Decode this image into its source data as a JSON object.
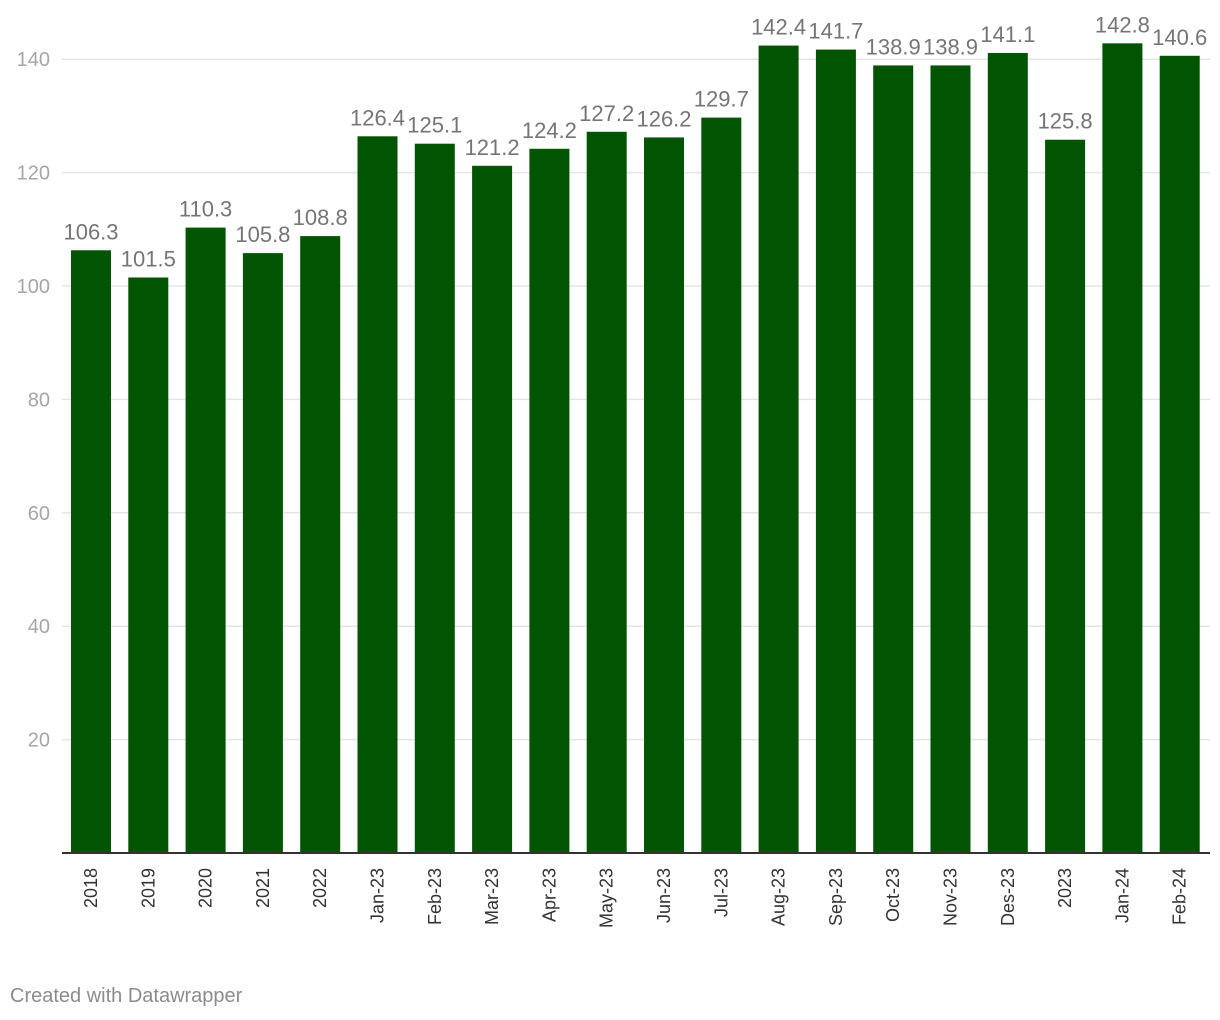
{
  "chart_data": {
    "type": "bar",
    "categories": [
      "2018",
      "2019",
      "2020",
      "2021",
      "2022",
      "Jan-23",
      "Feb-23",
      "Mar-23",
      "Apr-23",
      "May-23",
      "Jun-23",
      "Jul-23",
      "Aug-23",
      "Sep-23",
      "Oct-23",
      "Nov-23",
      "Des-23",
      "2023",
      "Jan-24",
      "Feb-24"
    ],
    "values": [
      106.3,
      101.5,
      110.3,
      105.8,
      108.8,
      126.4,
      125.1,
      121.2,
      124.2,
      127.2,
      126.2,
      129.7,
      142.4,
      141.7,
      138.9,
      138.9,
      141.1,
      125.8,
      142.8,
      140.6
    ],
    "value_labels": [
      "106.3",
      "101.5",
      "110.3",
      "105.8",
      "108.8",
      "126.4",
      "125.1",
      "121.2",
      "124.2",
      "127.2",
      "126.2",
      "129.7",
      "142.4",
      "141.7",
      "138.9",
      "138.9",
      "141.1",
      "125.8",
      "142.8",
      "140.6"
    ],
    "ylim": [
      0,
      140
    ],
    "yticks": [
      20,
      40,
      60,
      80,
      100,
      120,
      140
    ],
    "grid": true,
    "bar_color": "#015401",
    "label_color": "#757575",
    "tick_color": "#a6a6a6",
    "axis_text_color": "#333333"
  },
  "footer": {
    "credit": "Created with Datawrapper"
  }
}
